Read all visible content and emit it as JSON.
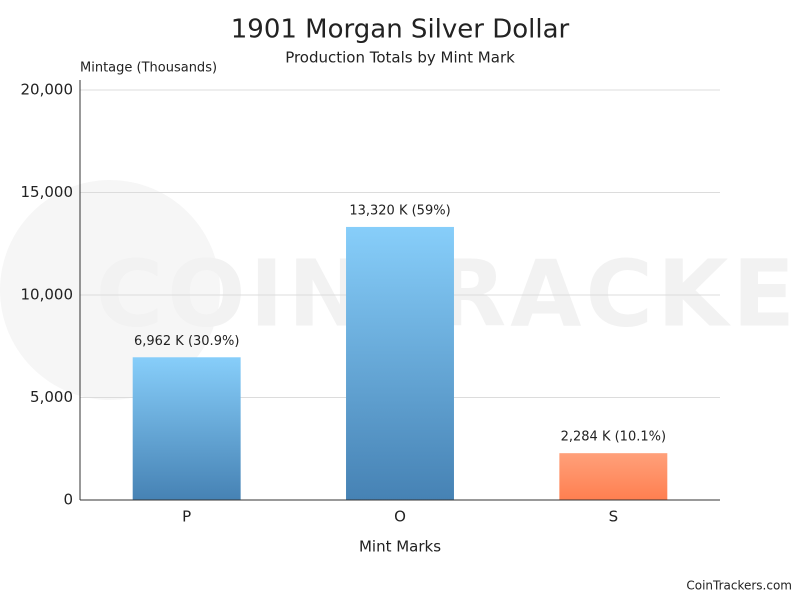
{
  "chart_data": {
    "type": "bar",
    "title": "1901 Morgan Silver Dollar",
    "subtitle": "Production Totals by Mint Mark",
    "y_label": "Mintage (Thousands)",
    "x_label": "Mint Marks",
    "watermark": "COINTRACKERS",
    "credit": "CoinTrackers.com",
    "categories": [
      "P",
      "O",
      "S"
    ],
    "values": [
      6962,
      13320,
      2284
    ],
    "value_labels": [
      "6,962 K (30.9%)",
      "13,320 K (59%)",
      "2,284 K (10.1%)"
    ],
    "colors": [
      [
        "#87cefa",
        "#4682b4"
      ],
      [
        "#87cefa",
        "#4682b4"
      ],
      [
        "#ffa07a",
        "#ff7f50"
      ]
    ],
    "ylim": [
      0,
      20000
    ],
    "yticks": [
      0,
      {
        "value": 5000,
        "label": "5,000"
      },
      {
        "value": 10000,
        "label": "10,000"
      },
      {
        "value": 15000,
        "label": "15,000"
      },
      {
        "value": 20000,
        "label": "20,000"
      }
    ],
    "grid": true
  }
}
